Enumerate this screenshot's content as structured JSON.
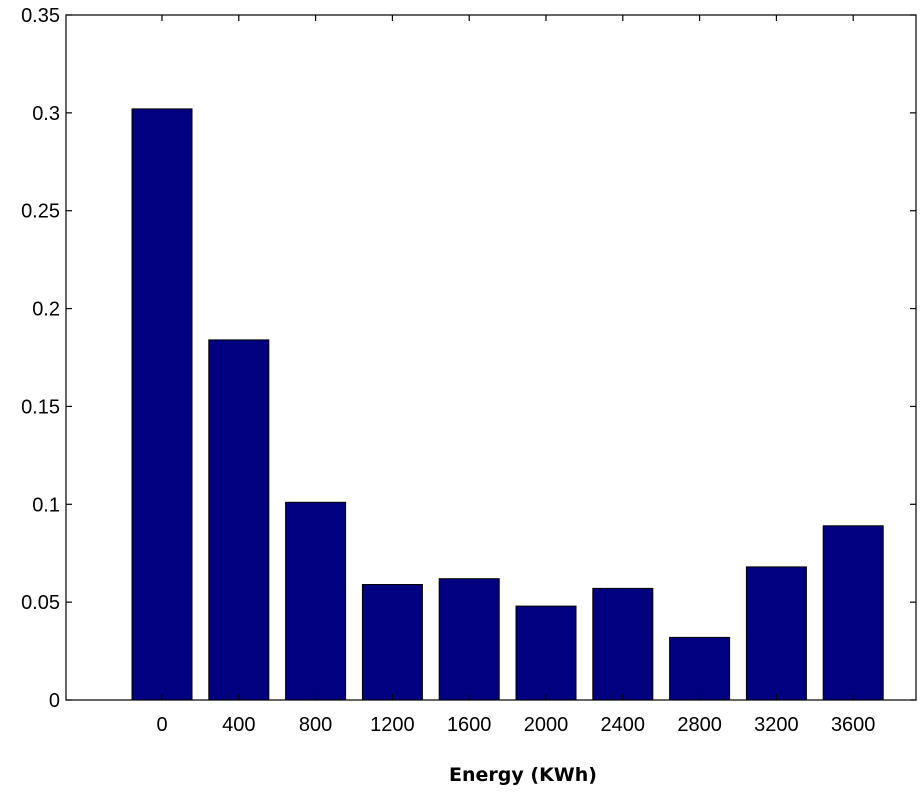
{
  "chart_data": {
    "type": "bar",
    "title": "",
    "xlabel": "Energy (KWh)",
    "ylabel": "",
    "categories": [
      "0",
      "400",
      "800",
      "1200",
      "1600",
      "2000",
      "2400",
      "2800",
      "3200",
      "3600"
    ],
    "values": [
      0.302,
      0.184,
      0.101,
      0.059,
      0.062,
      0.048,
      0.057,
      0.032,
      0.068,
      0.089
    ],
    "ylim": [
      0,
      0.35
    ],
    "yticks": [
      "0",
      "0.05",
      "0.1",
      "0.15",
      "0.2",
      "0.25",
      "0.3",
      "0.35"
    ],
    "grid": false,
    "legend": "none",
    "bar_color": "#000080"
  }
}
